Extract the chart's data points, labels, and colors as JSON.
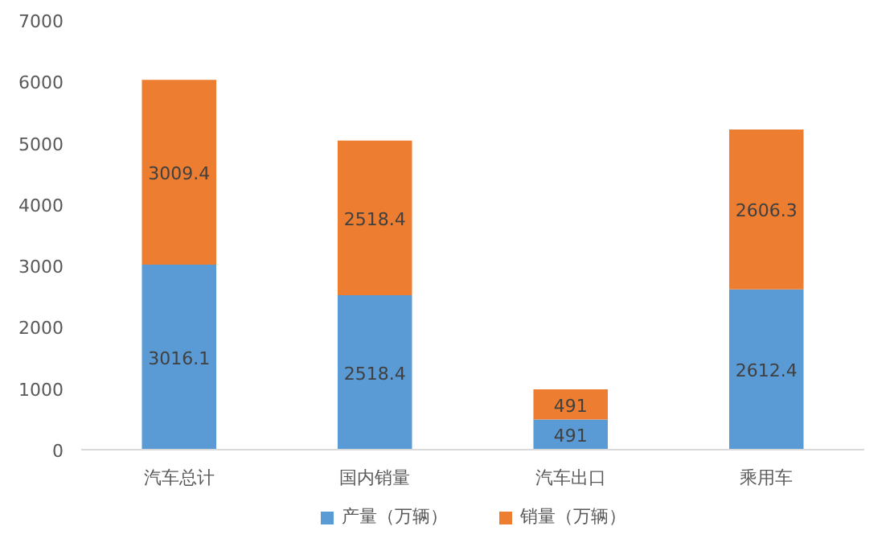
{
  "chart_data": {
    "type": "bar",
    "stacked": true,
    "categories": [
      "汽车总计",
      "国内销量",
      "汽车出口",
      "乘用车"
    ],
    "series": [
      {
        "name": "产量（万辆）",
        "color": "#5b9bd5",
        "values": [
          3016.1,
          2518.4,
          491,
          2612.4
        ]
      },
      {
        "name": "销量（万辆）",
        "color": "#ed7d31",
        "values": [
          3009.4,
          2518.4,
          491,
          2606.3
        ]
      }
    ],
    "ylim": [
      0,
      7000
    ],
    "yticks": [
      0,
      1000,
      2000,
      3000,
      4000,
      5000,
      6000,
      7000
    ],
    "data_labels": true,
    "legend": "bottom",
    "grid": false
  }
}
